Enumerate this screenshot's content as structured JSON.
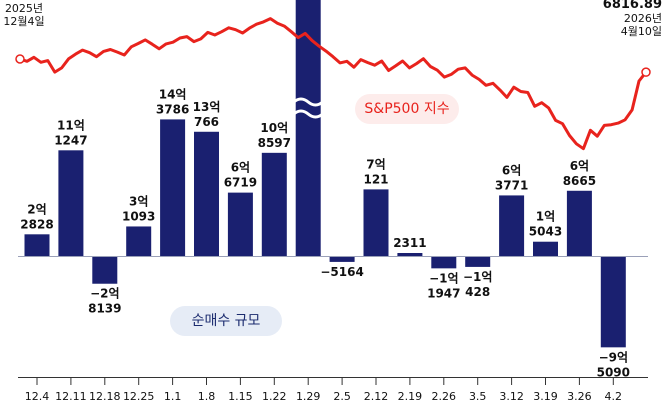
{
  "chart_data": {
    "type": "bar",
    "categories": [
      "12.4",
      "12.11",
      "12.18",
      "12.25",
      "1.1",
      "1.8",
      "1.15",
      "1.22",
      "1.29",
      "2.5",
      "2.12",
      "2.19",
      "2.26",
      "3.5",
      "3.12",
      "3.19",
      "3.26",
      "4.2"
    ],
    "bar_series": {
      "name": "순매수 규모",
      "values": [
        22828,
        111247,
        -28139,
        31093,
        143786,
        130766,
        66719,
        108597,
        999999,
        -5164,
        70121,
        2311,
        -11947,
        -10428,
        63771,
        15043,
        68665,
        -95090
      ],
      "labels": [
        [
          "2억",
          "2828"
        ],
        [
          "11억",
          "1247"
        ],
        [
          "−2억",
          "8139"
        ],
        [
          "3억",
          "1093"
        ],
        [
          "14억",
          "3786"
        ],
        [
          "13억",
          "766"
        ],
        [
          "6억",
          "6719"
        ],
        [
          "10억",
          "8597"
        ],
        [
          "",
          ""
        ],
        [
          "",
          "−5164"
        ],
        [
          "7억",
          "121"
        ],
        [
          "",
          "2311"
        ],
        [
          "−1억",
          "1947"
        ],
        [
          "−1억",
          "428"
        ],
        [
          "6억",
          "3771"
        ],
        [
          "1억",
          "5043"
        ],
        [
          "6억",
          "8665"
        ],
        [
          "−9억",
          "5090"
        ]
      ],
      "broken_bar_index": 8
    },
    "line_series": {
      "name": "S&P500 지수",
      "start_label": [
        "2025년",
        "12월4일"
      ],
      "end_label": [
        "6816.89",
        "2026년",
        "4월10일"
      ],
      "values": [
        6857,
        6850,
        6862,
        6847,
        6852,
        6817,
        6830,
        6858,
        6872,
        6884,
        6876,
        6864,
        6880,
        6886,
        6878,
        6869,
        6894,
        6904,
        6915,
        6902,
        6888,
        6903,
        6908,
        6921,
        6925,
        6910,
        6918,
        6938,
        6930,
        6940,
        6952,
        6946,
        6936,
        6951,
        6963,
        6970,
        6980,
        6966,
        6957,
        6940,
        6922,
        6935,
        6913,
        6896,
        6881,
        6864,
        6845,
        6850,
        6832,
        6855,
        6846,
        6838,
        6851,
        6822,
        6836,
        6851,
        6830,
        6843,
        6858,
        6834,
        6823,
        6802,
        6810,
        6826,
        6830,
        6808,
        6795,
        6777,
        6783,
        6763,
        6740,
        6771,
        6758,
        6755,
        6713,
        6724,
        6708,
        6670,
        6660,
        6624,
        6599,
        6584,
        6640,
        6622,
        6655,
        6657,
        6662,
        6672,
        6702,
        6790,
        6816.89
      ]
    },
    "sp_label": "S&P500 지수",
    "flow_label": "순매수 규모"
  }
}
